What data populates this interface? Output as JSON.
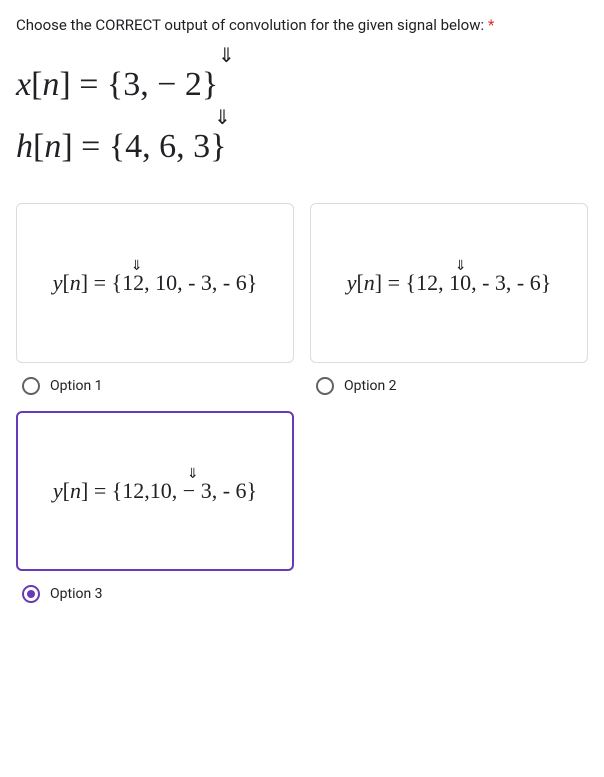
{
  "question": {
    "text": "Choose the CORRECT output of convolution for the given signal below:",
    "required_marker": "*"
  },
  "signals": {
    "x": {
      "lhs": "x",
      "n": "n",
      "set": "{3, − 2}",
      "arrow": "⇓"
    },
    "h": {
      "lhs": "h",
      "n": "n",
      "set": "{4, 6, 3}",
      "arrow": "⇓"
    }
  },
  "options": [
    {
      "id": "option-1",
      "label": "Option 1",
      "formula_lhs": "y",
      "formula_n": "n",
      "formula_set": "{12, 10, - 3, - 6}",
      "arrow": "⇓",
      "selected": false
    },
    {
      "id": "option-2",
      "label": "Option 2",
      "formula_lhs": "y",
      "formula_n": "n",
      "formula_set": "{12, 10, - 3, - 6}",
      "arrow": "⇓",
      "selected": false
    },
    {
      "id": "option-3",
      "label": "Option 3",
      "formula_lhs": "y",
      "formula_n": "n",
      "formula_set": "{12,10, − 3, - 6}",
      "arrow": "⇓",
      "selected": true
    }
  ],
  "colors": {
    "border": "#dadce0",
    "selected_border": "#673ab7",
    "asterisk": "#d93025",
    "text": "#202124",
    "radio_unchecked": "#5f6368"
  }
}
